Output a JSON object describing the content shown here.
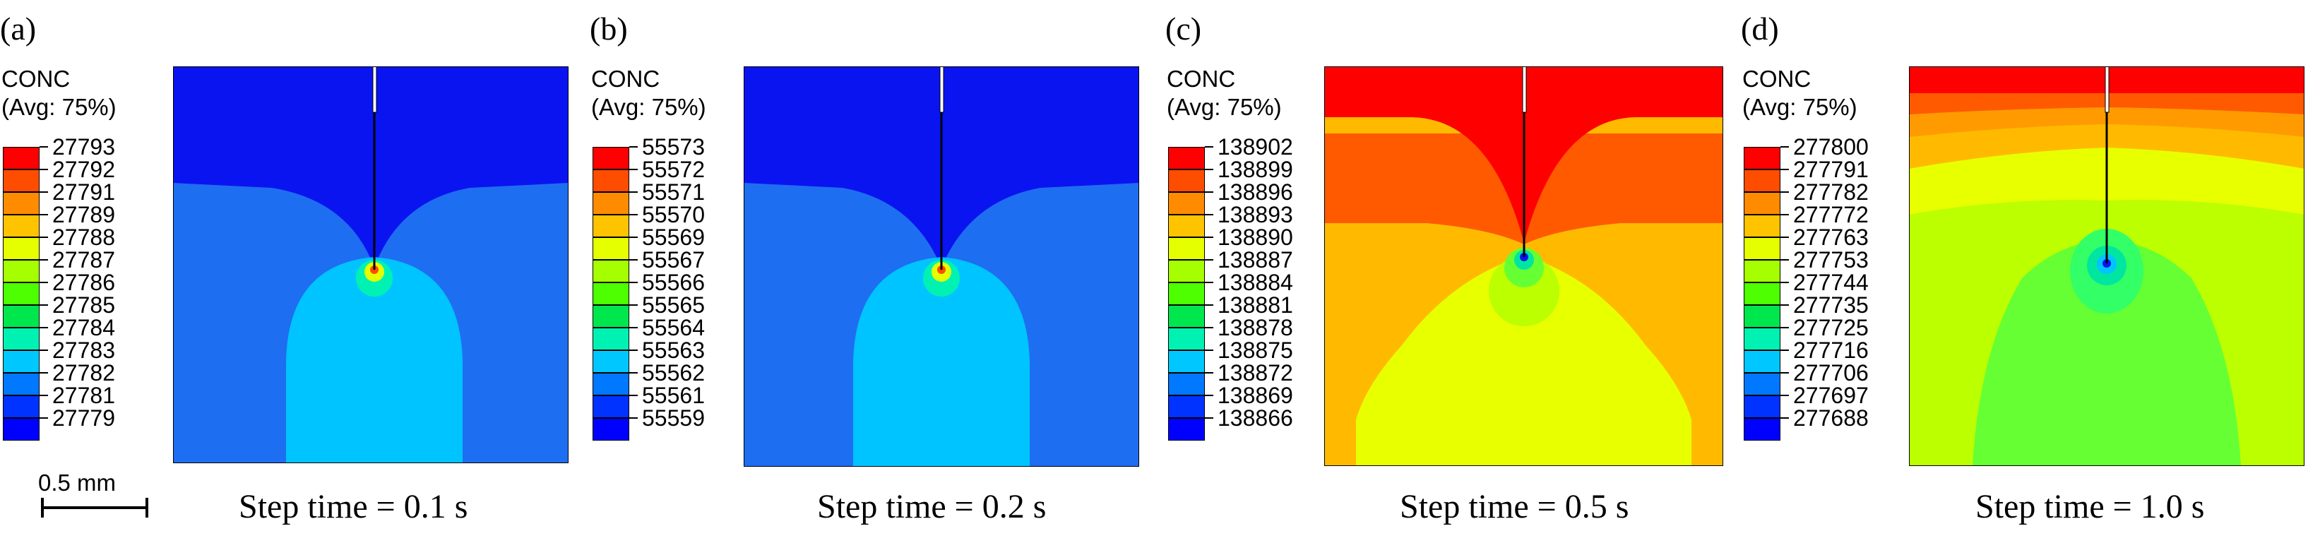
{
  "panels": [
    {
      "label": "(a)",
      "legend_title": "CONC",
      "legend_avg": "(Avg: 75%)",
      "legend_values": [
        "27793",
        "27792",
        "27791",
        "27789",
        "27788",
        "27787",
        "27786",
        "27785",
        "27784",
        "27783",
        "27782",
        "27781",
        "27779"
      ],
      "step_time": "Step time = 0.1 s"
    },
    {
      "label": "(b)",
      "legend_title": "CONC",
      "legend_avg": "(Avg: 75%)",
      "legend_values": [
        "55573",
        "55572",
        "55571",
        "55570",
        "55569",
        "55567",
        "55566",
        "55565",
        "55564",
        "55563",
        "55562",
        "55561",
        "55559"
      ],
      "step_time": "Step time = 0.2 s"
    },
    {
      "label": "(c)",
      "legend_title": "CONC",
      "legend_avg": "(Avg: 75%)",
      "legend_values": [
        "138902",
        "138899",
        "138896",
        "138893",
        "138890",
        "138887",
        "138884",
        "138881",
        "138878",
        "138875",
        "138872",
        "138869",
        "138866"
      ],
      "step_time": "Step time = 0.5 s"
    },
    {
      "label": "(d)",
      "legend_title": "CONC",
      "legend_avg": "(Avg: 75%)",
      "legend_values": [
        "277800",
        "277791",
        "277782",
        "277772",
        "277763",
        "277753",
        "277744",
        "277735",
        "277725",
        "277716",
        "277706",
        "277697",
        "277688"
      ],
      "step_time": "Step time = 1.0 s"
    }
  ],
  "scale_bar": {
    "label": "0.5 mm"
  },
  "colors": {
    "legend": [
      "#ff0000",
      "#ff4d00",
      "#ff8c00",
      "#ffc300",
      "#e6ff00",
      "#a6ff00",
      "#4dff00",
      "#00e64d",
      "#00f2b3",
      "#00c8ff",
      "#0078ff",
      "#0033ff",
      "#0000ff"
    ],
    "blue_dark": "#0a14f0",
    "blue_mid": "#1e6ef2",
    "blue_light": "#00c4ff",
    "red": "#ff0000",
    "orange": "#ff5a00",
    "orange_light": "#ff9b00",
    "amber": "#ffba00",
    "yellow": "#e8ff00",
    "yellow_green": "#bbff00",
    "green_light": "#66ff33",
    "green": "#33ff66",
    "teal": "#00e6a0"
  }
}
